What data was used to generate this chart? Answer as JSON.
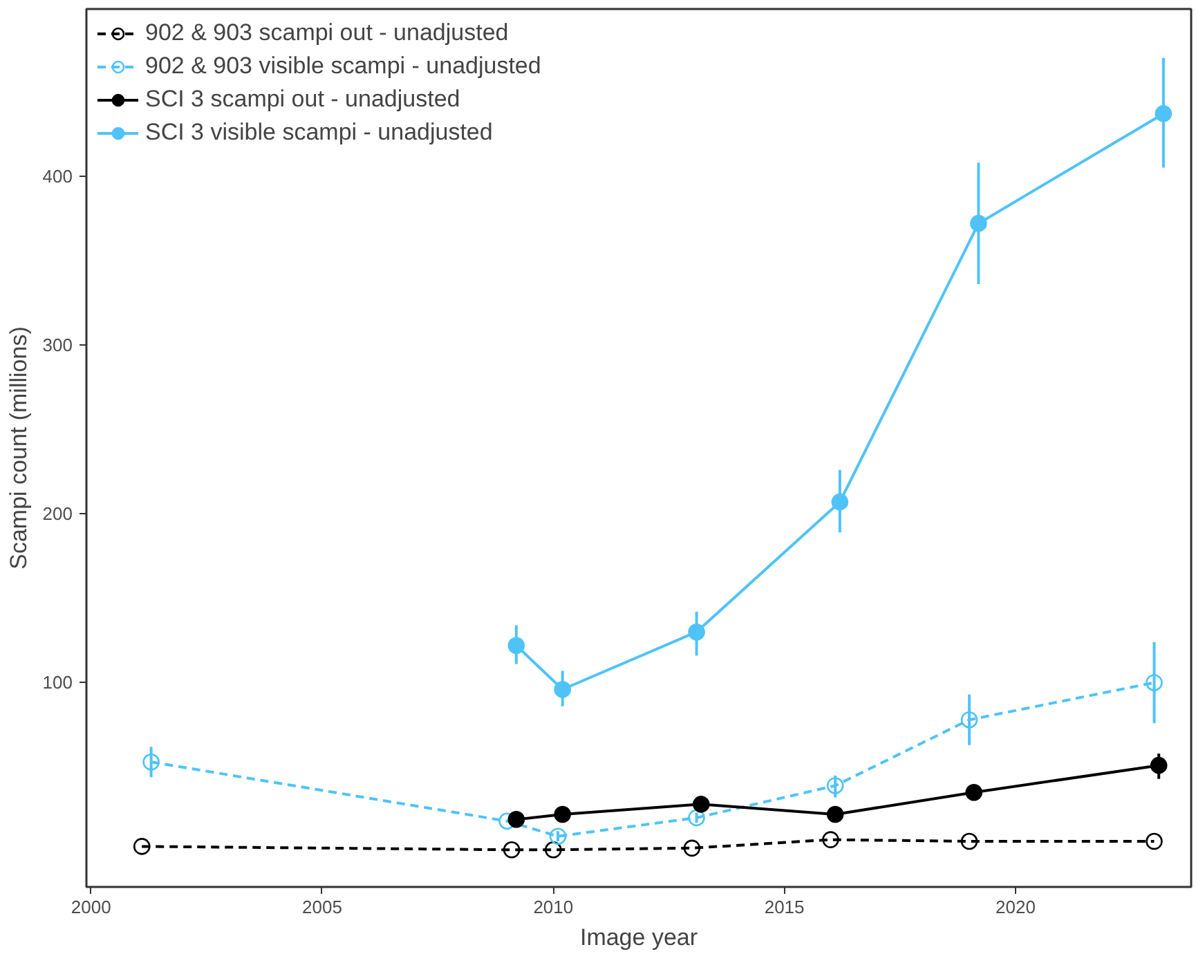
{
  "chart_data": {
    "type": "line",
    "xlabel": "Image year",
    "ylabel": "Scampi count (millions)",
    "xlim": [
      1999.9,
      2023.8
    ],
    "ylim": [
      -21,
      499
    ],
    "xticks": [
      2000,
      2005,
      2010,
      2015,
      2020
    ],
    "yticks": [
      100,
      200,
      300,
      400
    ],
    "grid": false,
    "legend": "top left",
    "marker": "circle",
    "series": [
      {
        "name": "902 & 903 scampi out - unadjusted",
        "color": "#000000",
        "line_style": "dashed",
        "x": [
          2001.1,
          2009.1,
          2010.0,
          2013.0,
          2016.0,
          2019.0,
          2023.0
        ],
        "values": [
          3,
          1,
          1,
          2,
          7,
          6,
          6
        ],
        "errors": [
          null,
          null,
          null,
          null,
          null,
          null,
          null
        ]
      },
      {
        "name": "902 & 903 visible scampi - unadjusted",
        "color": "#4fc3f7",
        "line_style": "dashed",
        "x": [
          2001.3,
          2009.0,
          2010.1,
          2013.1,
          2016.1,
          2019.0,
          2023.0
        ],
        "values": [
          53,
          18,
          9,
          20,
          39,
          78,
          100
        ],
        "errors": [
          [
            44,
            62
          ],
          null,
          [
            6,
            12
          ],
          [
            17,
            23
          ],
          [
            32,
            45
          ],
          [
            63,
            93
          ],
          [
            76,
            124
          ]
        ]
      },
      {
        "name": "SCI 3 scampi out - unadjusted",
        "color": "#000000",
        "line_style": "solid",
        "x": [
          2009.2,
          2010.2,
          2013.2,
          2016.1,
          2019.1,
          2023.1
        ],
        "values": [
          19,
          22,
          28,
          22,
          35,
          51
        ],
        "errors": [
          null,
          null,
          null,
          null,
          null,
          [
            43,
            58
          ]
        ]
      },
      {
        "name": "SCI 3 visible scampi - unadjusted",
        "color": "#4fc3f7",
        "line_style": "solid",
        "x": [
          2009.2,
          2010.2,
          2013.1,
          2016.2,
          2019.2,
          2023.2
        ],
        "values": [
          122,
          96,
          130,
          207,
          372,
          437
        ],
        "errors": [
          [
            111,
            134
          ],
          [
            86,
            107
          ],
          [
            116,
            142
          ],
          [
            189,
            226
          ],
          [
            336,
            408
          ],
          [
            405,
            470
          ]
        ]
      }
    ]
  }
}
